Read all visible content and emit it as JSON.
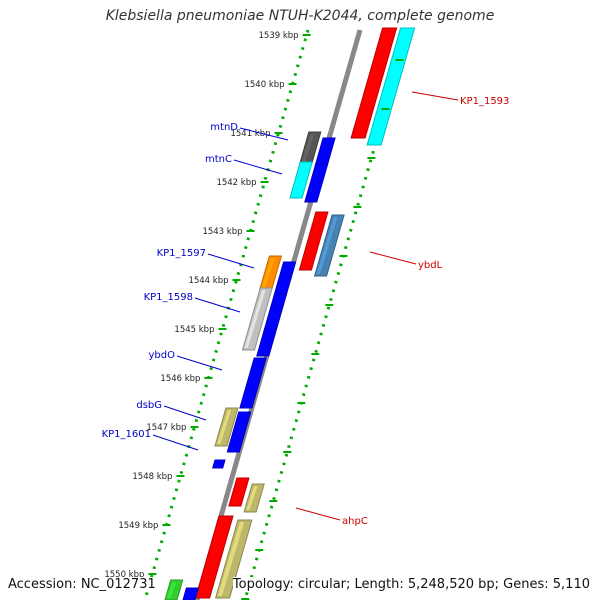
{
  "title": "Klebsiella pneumoniae NTUH-K2044, complete genome",
  "footer": {
    "accession": "Accession: NC_012731",
    "summary": "Topology: circular; Length: 5,248,520 bp; Genes: 5,110"
  },
  "colors": {
    "backbone": "#888888",
    "tick": "#00aa00",
    "forward_label": "#0000cc",
    "reverse_label": "#cc0000",
    "red": "#ff0000",
    "cyan": "#00ffff",
    "steel": "#4682b4",
    "blue": "#0000ff",
    "dark": "#555555",
    "orange": "#ff8c00",
    "silver": "#c0c0c0",
    "khaki": "#bdb76b",
    "green": "#33cc33"
  },
  "ruler": {
    "labels": [
      "1539 kbp",
      "1540 kbp",
      "1541 kbp",
      "1542 kbp",
      "1543 kbp",
      "1544 kbp",
      "1545 kbp",
      "1546 kbp",
      "1547 kbp",
      "1548 kbp",
      "1549 kbp",
      "1550 kbp"
    ]
  },
  "gene_labels": {
    "forward": [
      "mtnD",
      "mtnC",
      "KP1_1597",
      "KP1_1598",
      "ybdO",
      "dsbG",
      "KP1_1601"
    ],
    "reverse": [
      "KP1_1593",
      "ybdL",
      "ahpC"
    ]
  }
}
